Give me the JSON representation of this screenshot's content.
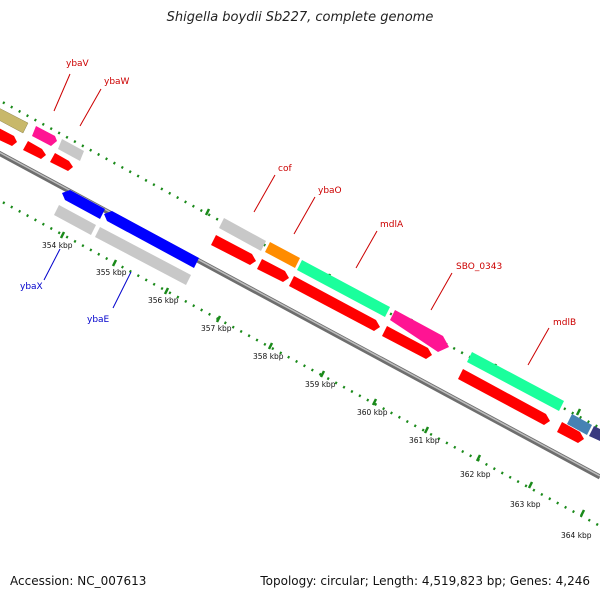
{
  "title": "Shigella boydii Sb227, complete genome",
  "footer": {
    "accession": "Accession: NC_007613",
    "summary": "Topology: circular; Length: 4,519,823 bp; Genes: 4,246"
  },
  "ticks": [
    {
      "label": "354 kbp",
      "kbp": 354
    },
    {
      "label": "355 kbp",
      "kbp": 355
    },
    {
      "label": "356 kbp",
      "kbp": 356
    },
    {
      "label": "357 kbp",
      "kbp": 357
    },
    {
      "label": "358 kbp",
      "kbp": 358
    },
    {
      "label": "359 kbp",
      "kbp": 359
    },
    {
      "label": "360 kbp",
      "kbp": 360
    },
    {
      "label": "361 kbp",
      "kbp": 361
    },
    {
      "label": "362 kbp",
      "kbp": 362
    },
    {
      "label": "363 kbp",
      "kbp": 363
    },
    {
      "label": "364 kbp",
      "kbp": 364
    }
  ],
  "gene_labels": [
    {
      "name": "ybaV",
      "strand": "forward"
    },
    {
      "name": "ybaW",
      "strand": "forward"
    },
    {
      "name": "cof",
      "strand": "forward"
    },
    {
      "name": "ybaO",
      "strand": "forward"
    },
    {
      "name": "mdlA",
      "strand": "forward"
    },
    {
      "name": "SBO_0343",
      "strand": "forward"
    },
    {
      "name": "mdlB",
      "strand": "forward"
    },
    {
      "name": "ybaX",
      "strand": "reverse"
    },
    {
      "name": "ybaE",
      "strand": "reverse"
    }
  ],
  "colors": {
    "backbone": "#8c8c8c",
    "cds": "#ff0000",
    "forward_label": "#cc0000",
    "reverse_label": "#0000cc",
    "tick_dots": "#1a8a1a",
    "olive": "#c8b86a",
    "pink": "#ff1493",
    "grey": "#c8c8c8",
    "blue": "#0000ff",
    "orange": "#ff8c00",
    "teal": "#1aff9c",
    "steel": "#4682b4",
    "purple": "#3a3a80"
  }
}
